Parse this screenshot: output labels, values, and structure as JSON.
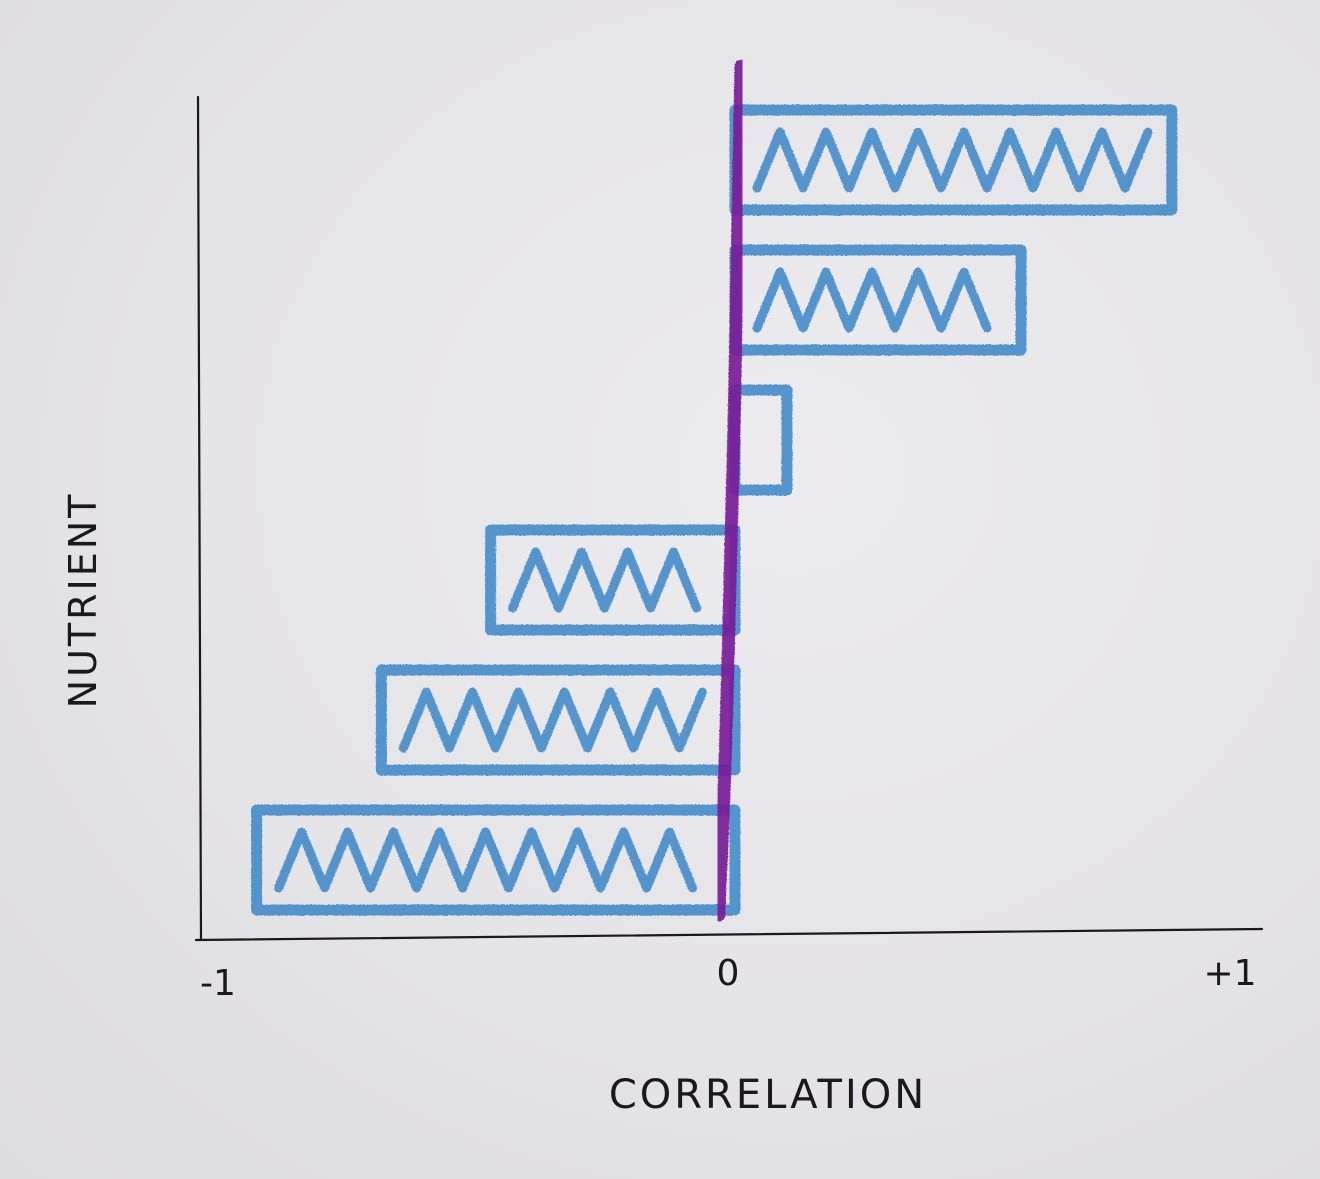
{
  "chart_data": {
    "type": "bar",
    "orientation": "horizontal",
    "title": "",
    "xlabel": "CORRELATION",
    "ylabel": "NUTRIENT",
    "xlim": [
      -1,
      1
    ],
    "x_ticks": [
      "-1",
      "0",
      "+1"
    ],
    "x_tick_values": [
      -1,
      0,
      1
    ],
    "categories": [
      "",
      "",
      "",
      "",
      "",
      ""
    ],
    "values": [
      0.84,
      0.55,
      0.1,
      -0.47,
      -0.68,
      -0.92
    ],
    "grid": false,
    "legend": "none",
    "style": "hand-drawn crayon",
    "colors": {
      "bars": "#3a86c8",
      "zero_line": "#7a1f9a",
      "axes": "#1a1a1a"
    }
  }
}
